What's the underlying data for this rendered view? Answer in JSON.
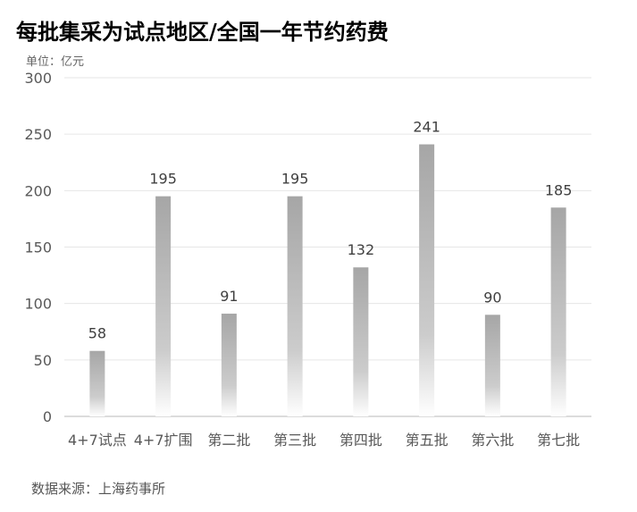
{
  "chart_data": {
    "type": "bar",
    "title": "每批集采为试点地区/全国一年节约药费",
    "unit_label": "单位：亿元",
    "source": "数据来源：上海药事所",
    "categories": [
      "4+7试点",
      "4+7扩围",
      "第二批",
      "第三批",
      "第四批",
      "第五批",
      "第六批",
      "第七批"
    ],
    "values": [
      58,
      195,
      91,
      195,
      132,
      241,
      90,
      185
    ],
    "ylim": [
      0,
      300
    ],
    "yticks": [
      0,
      50,
      100,
      150,
      200,
      250,
      300
    ],
    "grid": true,
    "bar_color": "#a6a6a6",
    "data_labels": true
  }
}
